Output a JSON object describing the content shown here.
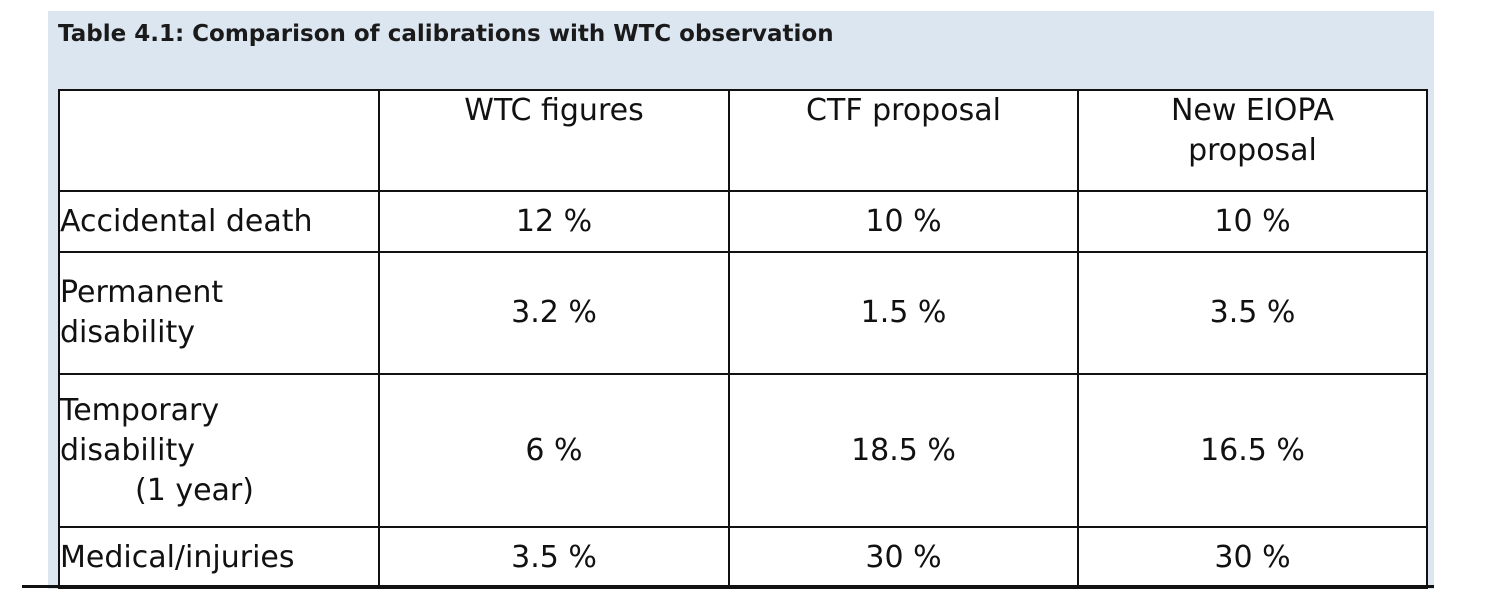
{
  "caption": "Table 4.1: Comparison of calibrations with WTC observation",
  "columns": {
    "blank": "",
    "c1": "WTC figures",
    "c2": "CTF proposal",
    "c3_line1": "New EIOPA",
    "c3_line2": "proposal"
  },
  "rows": [
    {
      "label_lines": [
        "Accidental death"
      ],
      "wtc": "12 %",
      "ctf": "10 %",
      "eiopa": "10 %"
    },
    {
      "label_lines": [
        "Permanent",
        "disability"
      ],
      "wtc": "3.2 %",
      "ctf": "1.5 %",
      "eiopa": "3.5 %"
    },
    {
      "label_lines": [
        "Temporary",
        "disability",
        "(1 year)"
      ],
      "wtc": "6 %",
      "ctf": "18.5 %",
      "eiopa": "16.5 %"
    },
    {
      "label_lines": [
        "Medical/injuries"
      ],
      "wtc": "3.5 %",
      "ctf": "30 %",
      "eiopa": "30 %"
    }
  ]
}
